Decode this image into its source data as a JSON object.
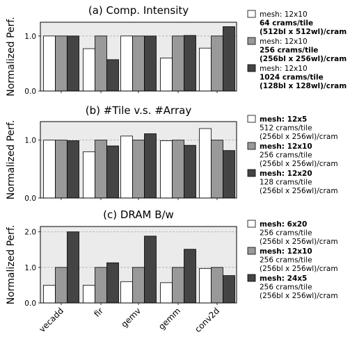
{
  "chart_data": [
    {
      "type": "bar",
      "title": "(a) Comp. Intensity",
      "ylabel": "Normalized Perf.",
      "ylim": [
        0,
        1.25
      ],
      "yticks": [
        "0.0",
        "1.0"
      ],
      "grid": "horizontal dashed",
      "legend_position": "right",
      "categories": [
        "vecadd",
        "fir",
        "gemv",
        "gemm",
        "conv2d"
      ],
      "series": [
        {
          "legend_lines": [
            "mesh: 12x10",
            "64 crams/tile",
            "(512bl x 512wl)/cram"
          ],
          "color": "#ffffff",
          "values": [
            1.0,
            0.77,
            1.0,
            0.6,
            0.78
          ]
        },
        {
          "legend_lines": [
            "mesh: 12x10",
            "256 crams/tile",
            "(256bl x 256wl)/cram"
          ],
          "color": "#999999",
          "values": [
            1.0,
            1.0,
            1.0,
            1.0,
            1.0
          ]
        },
        {
          "legend_lines": [
            "mesh: 12x10",
            "1024 crams/tile",
            "(128bl x 128wl)/cram"
          ],
          "color": "#444444",
          "values": [
            1.0,
            0.57,
            1.0,
            1.01,
            1.17
          ]
        }
      ]
    },
    {
      "type": "bar",
      "title": "(b) #Tile v.s. #Array",
      "ylabel": "Normalized Perf.",
      "ylim": [
        0,
        1.32
      ],
      "yticks": [
        "0.0",
        "1.0"
      ],
      "grid": "horizontal dashed",
      "legend_position": "right",
      "categories": [
        "vecadd",
        "fir",
        "gemv",
        "gemm",
        "conv2d"
      ],
      "series": [
        {
          "legend_lines": [
            "mesh: 12x5",
            "512 crams/tile",
            "(256bl x 256wl)/cram"
          ],
          "color": "#ffffff",
          "values": [
            1.0,
            0.8,
            1.07,
            0.99,
            1.2
          ]
        },
        {
          "legend_lines": [
            "mesh: 12x10",
            "256 crams/tile",
            "(256bl x 256wl)/cram"
          ],
          "color": "#999999",
          "values": [
            1.0,
            1.0,
            1.0,
            1.0,
            1.0
          ]
        },
        {
          "legend_lines": [
            "mesh: 12x20",
            "128 crams/tile",
            "(256bl x 256wl)/cram"
          ],
          "color": "#444444",
          "values": [
            0.99,
            0.9,
            1.11,
            0.91,
            0.82
          ]
        }
      ]
    },
    {
      "type": "bar",
      "title": "(c) DRAM B/w",
      "ylabel": "Normalized Perf.",
      "ylim": [
        0,
        2.15
      ],
      "yticks": [
        "0.0",
        "1.0",
        "2.0"
      ],
      "grid": "horizontal dashed",
      "legend_position": "right",
      "categories": [
        "vecadd",
        "fir",
        "gemv",
        "gemm",
        "conv2d"
      ],
      "series": [
        {
          "legend_lines": [
            "mesh: 6x20",
            "256 crams/tile",
            "(256bl x 256wl)/cram"
          ],
          "color": "#ffffff",
          "values": [
            0.5,
            0.5,
            0.6,
            0.57,
            0.97
          ]
        },
        {
          "legend_lines": [
            "mesh: 12x10",
            "256 crams/tile",
            "(256bl x 256wl)/cram"
          ],
          "color": "#999999",
          "values": [
            1.0,
            1.0,
            1.0,
            1.0,
            1.0
          ]
        },
        {
          "legend_lines": [
            "mesh: 24x5",
            "256 crams/tile",
            "(256bl x 256wl)/cram"
          ],
          "color": "#444444",
          "values": [
            2.0,
            1.13,
            1.88,
            1.51,
            0.77
          ]
        }
      ]
    }
  ]
}
